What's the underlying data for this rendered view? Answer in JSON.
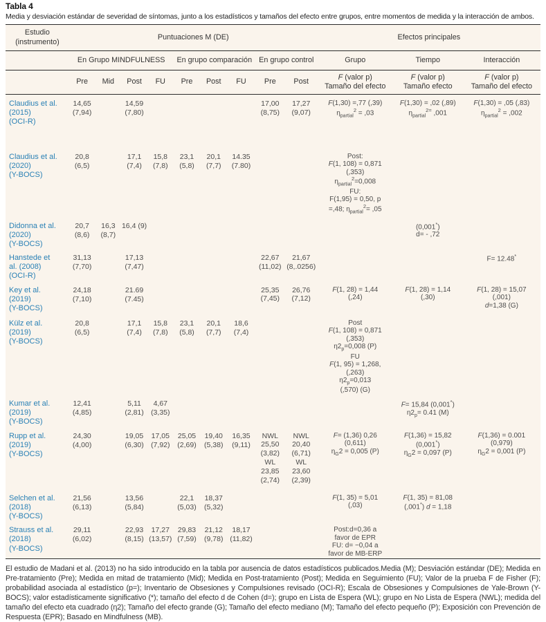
{
  "colors": {
    "table_bg": "#faf4ec",
    "study_link": "#2980b5",
    "rule": "#2b2b2b"
  },
  "title": "Tabla 4",
  "caption": "Media y desviación estándar de severidad de síntomas, junto a los estadísticos y tamaños del efecto entre grupos, entre momentos de medida y la interacción de ambos.",
  "header": {
    "study": "Estudio\n(instrumento)",
    "scores_group": "Puntuaciones M (DE)",
    "effects_group": "Efectos principales",
    "sub_mindfulness": "En Grupo MINDFULNESS",
    "sub_comparison": "En grupo comparación",
    "sub_control": "En grupo control",
    "sub_grupo": "Grupo",
    "sub_tiempo": "Tiempo",
    "sub_interaccion": "Interacción",
    "col_m_pre": "Pre",
    "col_m_mid": "Mid",
    "col_m_post": "Post",
    "col_m_fu": "FU",
    "col_c_pre": "Pre",
    "col_c_post": "Post",
    "col_c_fu": "FU",
    "col_ctrl_pre": "Pre",
    "col_ctrl_post": "Post",
    "stat_grupo": "<i>F</i> (valor p)\nTamaño del efecto",
    "stat_tiempo": "<i>F</i> (valor p)\nTamaño efecto",
    "stat_interaccion": "<i>F</i> (valor p)\nTamaño del efecto"
  },
  "rows": [
    {
      "study": "Claudius et al.\n(2015)\n(OCI-R)",
      "m_pre": "14,65\n(7,94)",
      "m_post": "14,59\n(7,80)",
      "ctrl_pre": "17,00\n(8,75)",
      "ctrl_post": "17,27\n(9,07)",
      "grupo": "<i>F</i>(1,30) =,77 (,39)\nη<sub>partial</sub><sup>2</sup> = ,03",
      "tiempo": "<i>F</i>(1,30) = ,02 (,89)\nη<sub>partial</sub><sup>2=</sup> ,001",
      "interaccion": "<i>F</i>(1,30) = ,05 (,83)\nη<sub>partial</sub><sup>2</sup> = ,002"
    },
    {
      "study": "Claudius et al.\n(2020)\n(Y-BOCS)",
      "m_pre": "20,8\n(6,5)",
      "m_post": "17,1\n(7,4)",
      "m_fu": "15,8\n(7,8)",
      "c_pre": "23,1\n(5,8)",
      "c_post": "20,1\n(7,7)",
      "c_fu": "14.35\n(7.80)",
      "grupo": "Post:\n<i>F</i>(1, 108) = 0,871\n(,353)\nη<sub>partial</sub><sup>2</sup>=0,008\nFU:\nF(1,95) = 0,50, p\n=,48; η<sub>partial</sub><sup>2</sup>= ,05"
    },
    {
      "study": "Didonna et al.\n(2020)\n(Y-BOCS)",
      "m_pre": "20,7\n(8,6)",
      "m_mid": "16,3\n(8,7)",
      "m_post": "16,4 (9)",
      "tiempo": "(0,001<sup>*</sup>)\nd= - ,72"
    },
    {
      "study": "Hanstede et\nal. (2008)\n(OCI-R)",
      "m_pre": "31,13\n(7,70)",
      "m_post": "17,13\n(7,47)",
      "ctrl_pre": "22,67\n(11,02)",
      "ctrl_post": "21,67\n(8,.0256)",
      "interaccion": "F= 12.48<sup>*</sup>"
    },
    {
      "study": "Key et al.\n(2019)\n(Y-BOCS)",
      "m_pre": "24,18\n(7,10)",
      "m_post": "21.69\n(7.45)",
      "ctrl_pre": "25,35\n(7,45)",
      "ctrl_post": "26,76\n(7,12)",
      "grupo": "<i>F</i>(1, 28) = 1,44\n(,24)",
      "tiempo": "<i>F</i>(1, 28) = 1,14\n(,30)",
      "interaccion": "<i>F</i>(1, 28) = 15,07\n(,001)\n<i>d</i>=1,38 (G)"
    },
    {
      "study": "Külz et al.\n(2019)\n(Y-BOCS)",
      "m_pre": "20,8\n(6,5)",
      "m_post": "17,1\n(7,4)",
      "m_fu": "15,8\n(7,8)",
      "c_pre": "23,1\n(5,8)",
      "c_post": "20,1\n(7,7)",
      "c_fu": "18,6\n(7,4)",
      "grupo": "Post\n<i>F</i>(1, 108) = 0,871\n(,353)\nη2<sub>p</sub>=0,008 (P)\nFU\n<i>F</i>(1, 95) = 1,268,\n(,263)\nη2<sub>p</sub>=0,013\n(,570) (G)"
    },
    {
      "study": "Kumar et al.\n(2019)\n(Y-BOCS)",
      "m_pre": "12,41\n(4,85)",
      "m_post": "5,11\n(2,81)",
      "m_fu": "4,67\n(3,35)",
      "tiempo": "<i>F</i>= 15,84 (0,001<sup>*</sup>)\nη2<sub>p</sub>= 0.41 (M)"
    },
    {
      "study": "Rupp et al.\n(2019)\n(Y-BOCS)",
      "m_pre": "24,30\n(4,00)",
      "m_post": "19,05\n(6,30)",
      "m_fu": "17,05\n(7,92)",
      "c_pre": "25,05\n(2,69)",
      "c_post": "19,40\n(5,38)",
      "c_fu": "16,35\n(9,11)",
      "ctrl_pre": "NWL\n25,50\n(3,82)\nWL\n23,85\n(2,74)",
      "ctrl_post": "NWL\n20,40\n(6,71)\nWL\n23,60\n(2,39)",
      "grupo": "<i>F</i>= (1,36) 0,26\n(0,611)\nη<sub>G</sub>2 = 0,005 (P)",
      "tiempo": "<i>F</i>(1,36) = 15,82\n(0,001<sup>*</sup>)\nη<sub>G</sub>2 = 0,097 (P)",
      "interaccion": "<i>F</i>(1,36) = 0.001\n(0,979)\nη<sub>G</sub>2 = 0,001 (P)"
    },
    {
      "study": "Selchen et al.\n(2018)\n(Y-BOCS)",
      "m_pre": "21,56\n(6,13)",
      "m_post": "13,56\n(5,84)",
      "c_pre": "22,1\n(5,03)",
      "c_post": "18,37\n(5,32)",
      "grupo": "<i>F</i>(1, 35) = 5,01\n(,03)",
      "tiempo": "<i>F</i>(1, 35) = 81,08\n(,001<sup>*</sup>) <i>d</i> = 1,18"
    },
    {
      "study": "Strauss et al.\n(2018)\n(Y-BOCS)",
      "m_pre": "29,11\n(6,02)",
      "m_post": "22,93\n(8,15)",
      "m_fu": "17,27\n(13,57)",
      "c_pre": "29,83\n(7,59)",
      "c_post": "21,12\n(9,78)",
      "c_fu": "18,17\n(11,82)",
      "grupo": "Post:d=0,36 a\nfavor de EPR\nFU: d= −0,04 a\nfavor de MB-ERP"
    }
  ],
  "footnote": "El estudio de Madani et al. (2013) no ha sido introducido en la tabla por ausencia de datos estadísticos publicados.Media (M); Desviación estándar (DE); Medida en Pre-tratamiento (Pre); Medida en mitad de tratamiento (Mid); Medida en Post-tratamiento (Post); Medida en Seguimiento (FU); Valor de la prueba F de Fisher (F); probabilidad asociada al estadístico (p=); Inventario de Obsesiones y Compulsiones revisado (OCI-R); Escala de Obsesiones y Compulsiones de Yale-Brown (Y-BOCS); valor estadísticamente significativo (*); tamaño del efecto d de Cohen (d=); grupo en Lista de Espera (WL); grupo en No Lista de Espera (NWL); medida del tamaño del efecto eta cuadrado (η2); Tamaño del efecto grande (G); Tamaño del efecto mediano (M); Tamaño del efecto pequeño (P); Exposición con Prevención de Respuesta (EPR); Basado en Mindfulness (MB)."
}
